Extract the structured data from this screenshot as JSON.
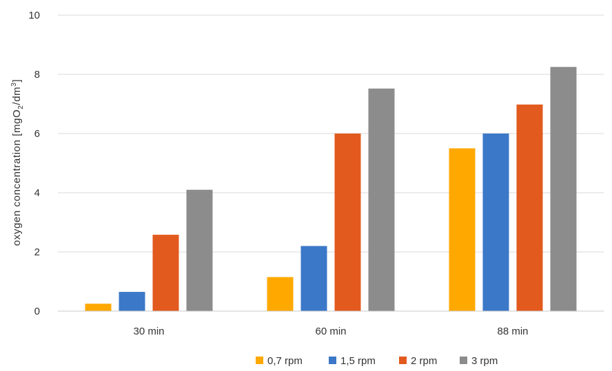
{
  "chart_data": {
    "type": "bar",
    "title": "",
    "xlabel": "",
    "ylabel": "oxygen concentration  [mgO",
    "ylabel_sub": "2",
    "ylabel_mid": "/dm",
    "ylabel_sup": "3",
    "ylabel_end": "]",
    "categories": [
      "30 min",
      "60 min",
      "88 min"
    ],
    "series": [
      {
        "name": "0,7 rpm",
        "color": "#FFA800",
        "values": [
          0.25,
          1.15,
          5.5
        ]
      },
      {
        "name": "1,5 rpm",
        "color": "#3B78C8",
        "values": [
          0.65,
          2.2,
          6.0
        ]
      },
      {
        "name": "2 rpm",
        "color": "#E25A1E",
        "values": [
          2.58,
          6.0,
          6.98
        ]
      },
      {
        "name": "3 rpm",
        "color": "#8C8C8C",
        "values": [
          4.1,
          7.52,
          8.25
        ]
      }
    ],
    "ylim": [
      0,
      10
    ],
    "yticks": [
      "0",
      "2",
      "4",
      "6",
      "8",
      "10"
    ],
    "grid": true,
    "legend_position": "bottom"
  }
}
